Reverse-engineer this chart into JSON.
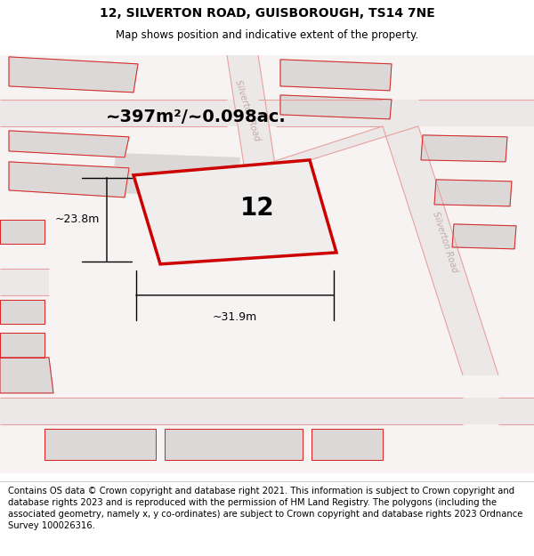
{
  "title": "12, SILVERTON ROAD, GUISBOROUGH, TS14 7NE",
  "subtitle": "Map shows position and indicative extent of the property.",
  "footer": "Contains OS data © Crown copyright and database right 2021. This information is subject to Crown copyright and database rights 2023 and is reproduced with the permission of HM Land Registry. The polygons (including the associated geometry, namely x, y co-ordinates) are subject to Crown copyright and database rights 2023 Ordnance Survey 100026316.",
  "area_label": "~397m²/~0.098ac.",
  "width_label": "~31.9m",
  "height_label": "~23.8m",
  "property_number": "12",
  "map_bg": "#f7f3f3",
  "road_fill": "#ede8e8",
  "bldg_fill": "#ddd8d8",
  "bldg_edge": "#c8c0c0",
  "plot_fill": "#f0eded",
  "plot_edge": "#cc0000",
  "red_outline": "#dd2222",
  "road_line": "#e8a0a0",
  "road_label_color": "#c0aaaa",
  "title_fs": 10,
  "subtitle_fs": 8.5,
  "footer_fs": 7.2,
  "area_fs": 14,
  "dim_fs": 9,
  "num_fs": 20
}
